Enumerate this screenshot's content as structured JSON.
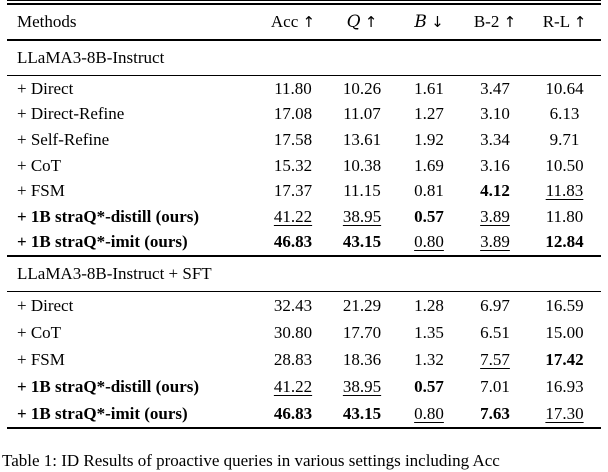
{
  "table": {
    "header": {
      "methods": "Methods",
      "cols": [
        {
          "label": "Acc",
          "arrow": "↑"
        },
        {
          "label": "Q",
          "arrow": "↑"
        },
        {
          "label": "B",
          "arrow": "↓"
        },
        {
          "label": "B-2",
          "arrow": "↑"
        },
        {
          "label": "R-L",
          "arrow": "↑"
        }
      ]
    },
    "sections": [
      {
        "title": "LLaMA3-8B-Instruct",
        "rows": [
          {
            "label": "+ Direct",
            "values": [
              "11.80",
              "10.26",
              "1.61",
              "3.47",
              "10.64"
            ]
          },
          {
            "label": "+ Direct-Refine",
            "values": [
              "17.08",
              "11.07",
              "1.27",
              "3.10",
              "6.13"
            ]
          },
          {
            "label": "+ Self-Refine",
            "values": [
              "17.58",
              "13.61",
              "1.92",
              "3.34",
              "9.71"
            ]
          },
          {
            "label": "+ CoT",
            "values": [
              "15.32",
              "10.38",
              "1.69",
              "3.16",
              "10.50"
            ]
          },
          {
            "label": "+ FSM",
            "values": [
              "17.37",
              "11.15",
              "0.81",
              "4.12",
              "11.83"
            ]
          },
          {
            "label": "+ 1B straQ*-distill (ours)",
            "values": [
              "41.22",
              "38.95",
              "0.57",
              "3.89",
              "11.80"
            ]
          },
          {
            "label": "+ 1B straQ*-imit (ours)",
            "values": [
              "46.83",
              "43.15",
              "0.80",
              "3.89",
              "12.84"
            ]
          }
        ]
      },
      {
        "title": "LLaMA3-8B-Instruct + SFT",
        "rows": [
          {
            "label": "+ Direct",
            "values": [
              "32.43",
              "21.29",
              "1.28",
              "6.97",
              "16.59"
            ]
          },
          {
            "label": "+ CoT",
            "values": [
              "30.80",
              "17.70",
              "1.35",
              "6.51",
              "15.00"
            ]
          },
          {
            "label": "+ FSM",
            "values": [
              "28.83",
              "18.36",
              "1.32",
              "7.57",
              "17.42"
            ]
          },
          {
            "label": "+ 1B straQ*-distill (ours)",
            "values": [
              "41.22",
              "38.95",
              "0.57",
              "7.01",
              "16.93"
            ]
          },
          {
            "label": "+ 1B straQ*-imit (ours)",
            "values": [
              "46.83",
              "43.15",
              "0.80",
              "7.63",
              "17.30"
            ]
          }
        ]
      }
    ]
  },
  "caption": "Table 1: ID Results of proactive queries in various settings including Acc"
}
